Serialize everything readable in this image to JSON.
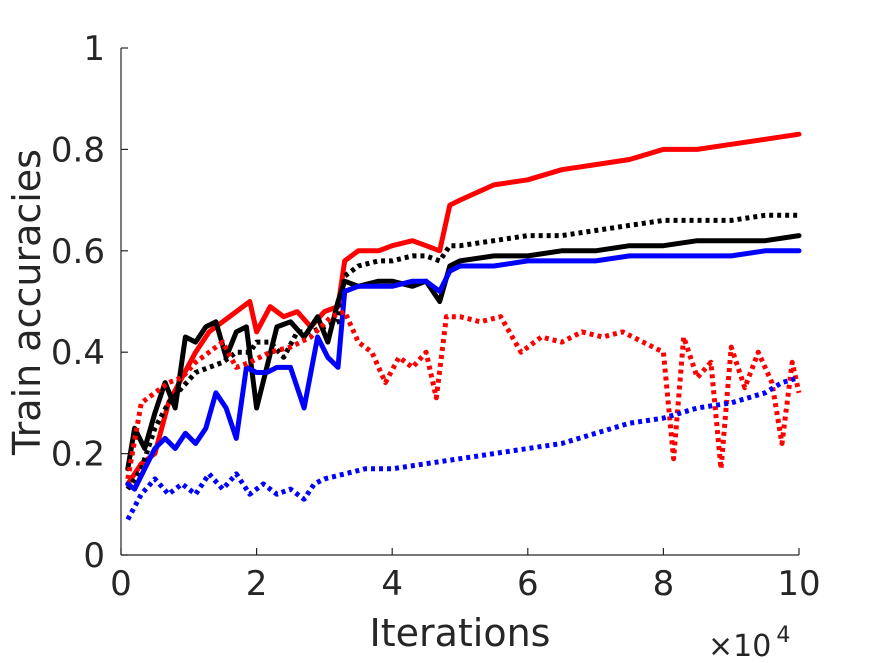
{
  "chart_data": {
    "type": "line",
    "xlabel": "Iterations",
    "ylabel": "Train accuracies",
    "x_multiplier_base": "×10",
    "x_multiplier_exp": "4",
    "xlim": [
      0,
      10
    ],
    "ylim": [
      0,
      1
    ],
    "xticks": [
      0,
      2,
      4,
      6,
      8,
      10
    ],
    "xtick_labels": [
      "0",
      "2",
      "4",
      "6",
      "8",
      "10"
    ],
    "yticks": [
      0,
      0.2,
      0.4,
      0.6,
      0.8,
      1
    ],
    "ytick_labels": [
      "0",
      "0.2",
      "0.4",
      "0.6",
      "0.8",
      "1"
    ],
    "grid": false,
    "series": [
      {
        "color": "#ff0000",
        "style": "solid",
        "x": [
          0.1,
          0.3,
          0.5,
          0.7,
          0.9,
          1.1,
          1.3,
          1.5,
          1.7,
          1.9,
          2.0,
          2.2,
          2.4,
          2.6,
          2.8,
          3.0,
          3.2,
          3.3,
          3.5,
          3.8,
          4.0,
          4.3,
          4.5,
          4.7,
          4.85,
          5.0,
          5.5,
          6.0,
          6.5,
          7.0,
          7.5,
          8.0,
          8.5,
          9.0,
          9.5,
          10.0
        ],
        "y": [
          0.14,
          0.18,
          0.2,
          0.3,
          0.35,
          0.4,
          0.44,
          0.46,
          0.48,
          0.5,
          0.44,
          0.49,
          0.47,
          0.48,
          0.45,
          0.48,
          0.49,
          0.58,
          0.6,
          0.6,
          0.61,
          0.62,
          0.61,
          0.6,
          0.69,
          0.7,
          0.73,
          0.74,
          0.76,
          0.77,
          0.78,
          0.8,
          0.8,
          0.81,
          0.82,
          0.83
        ]
      },
      {
        "color": "#000000",
        "style": "dotted",
        "x": [
          0.1,
          0.3,
          0.5,
          0.7,
          0.9,
          1.1,
          1.3,
          1.5,
          1.7,
          1.9,
          2.0,
          2.2,
          2.4,
          2.6,
          2.8,
          3.0,
          3.2,
          3.3,
          3.5,
          3.8,
          4.0,
          4.3,
          4.5,
          4.7,
          4.85,
          5.0,
          5.5,
          6.0,
          6.5,
          7.0,
          7.5,
          8.0,
          8.5,
          9.0,
          9.5,
          10.0
        ],
        "y": [
          0.13,
          0.17,
          0.25,
          0.3,
          0.33,
          0.36,
          0.37,
          0.38,
          0.4,
          0.4,
          0.42,
          0.42,
          0.39,
          0.44,
          0.44,
          0.45,
          0.46,
          0.55,
          0.57,
          0.58,
          0.58,
          0.59,
          0.59,
          0.58,
          0.61,
          0.61,
          0.62,
          0.63,
          0.63,
          0.64,
          0.65,
          0.66,
          0.66,
          0.66,
          0.67,
          0.67
        ]
      },
      {
        "color": "#000000",
        "style": "solid",
        "x": [
          0.1,
          0.2,
          0.35,
          0.5,
          0.65,
          0.8,
          0.95,
          1.1,
          1.25,
          1.4,
          1.55,
          1.7,
          1.85,
          2.0,
          2.15,
          2.3,
          2.5,
          2.7,
          2.9,
          3.05,
          3.2,
          3.3,
          3.5,
          3.8,
          4.0,
          4.3,
          4.5,
          4.7,
          4.85,
          5.0,
          5.5,
          6.0,
          6.5,
          7.0,
          7.5,
          8.0,
          8.5,
          9.0,
          9.5,
          10.0
        ],
        "y": [
          0.17,
          0.25,
          0.21,
          0.28,
          0.34,
          0.29,
          0.43,
          0.42,
          0.45,
          0.46,
          0.39,
          0.44,
          0.45,
          0.29,
          0.37,
          0.45,
          0.46,
          0.43,
          0.47,
          0.42,
          0.5,
          0.54,
          0.53,
          0.54,
          0.54,
          0.53,
          0.54,
          0.5,
          0.57,
          0.58,
          0.59,
          0.59,
          0.6,
          0.6,
          0.61,
          0.61,
          0.62,
          0.62,
          0.62,
          0.63
        ]
      },
      {
        "color": "#0000ff",
        "style": "solid",
        "x": [
          0.1,
          0.2,
          0.35,
          0.5,
          0.65,
          0.8,
          0.95,
          1.1,
          1.25,
          1.4,
          1.55,
          1.7,
          1.85,
          2.0,
          2.15,
          2.3,
          2.5,
          2.7,
          2.9,
          3.05,
          3.2,
          3.3,
          3.5,
          3.8,
          4.0,
          4.3,
          4.5,
          4.7,
          4.85,
          5.0,
          5.5,
          6.0,
          6.5,
          7.0,
          7.5,
          8.0,
          8.5,
          9.0,
          9.5,
          10.0
        ],
        "y": [
          0.14,
          0.13,
          0.17,
          0.21,
          0.23,
          0.21,
          0.24,
          0.22,
          0.25,
          0.32,
          0.29,
          0.23,
          0.37,
          0.36,
          0.36,
          0.37,
          0.37,
          0.29,
          0.43,
          0.39,
          0.37,
          0.52,
          0.53,
          0.53,
          0.53,
          0.54,
          0.54,
          0.52,
          0.56,
          0.57,
          0.57,
          0.58,
          0.58,
          0.58,
          0.59,
          0.59,
          0.59,
          0.59,
          0.6,
          0.6
        ]
      },
      {
        "color": "#ff0000",
        "style": "dotted",
        "x": [
          0.1,
          0.3,
          0.5,
          0.7,
          0.9,
          1.1,
          1.3,
          1.5,
          1.7,
          1.9,
          2.2,
          2.5,
          2.8,
          3.1,
          3.3,
          3.5,
          3.7,
          3.9,
          4.1,
          4.3,
          4.5,
          4.65,
          4.8,
          5.0,
          5.3,
          5.6,
          5.9,
          6.2,
          6.5,
          6.8,
          7.1,
          7.4,
          7.7,
          8.0,
          8.15,
          8.3,
          8.5,
          8.7,
          8.85,
          9.0,
          9.2,
          9.4,
          9.6,
          9.75,
          9.9,
          10.0
        ],
        "y": [
          0.15,
          0.3,
          0.32,
          0.34,
          0.35,
          0.38,
          0.4,
          0.42,
          0.37,
          0.38,
          0.4,
          0.41,
          0.43,
          0.47,
          0.48,
          0.42,
          0.4,
          0.34,
          0.39,
          0.37,
          0.4,
          0.31,
          0.47,
          0.47,
          0.46,
          0.47,
          0.4,
          0.43,
          0.42,
          0.44,
          0.43,
          0.44,
          0.42,
          0.4,
          0.19,
          0.43,
          0.35,
          0.38,
          0.17,
          0.41,
          0.33,
          0.4,
          0.34,
          0.22,
          0.38,
          0.32
        ]
      },
      {
        "color": "#0000ff",
        "style": "dotted",
        "x": [
          0.1,
          0.3,
          0.5,
          0.7,
          0.9,
          1.1,
          1.3,
          1.5,
          1.7,
          1.9,
          2.1,
          2.3,
          2.5,
          2.7,
          2.85,
          3.0,
          3.3,
          3.6,
          4.0,
          4.5,
          5.0,
          5.5,
          6.0,
          6.5,
          7.0,
          7.5,
          8.0,
          8.5,
          9.0,
          9.5,
          9.75,
          10.0
        ],
        "y": [
          0.07,
          0.12,
          0.15,
          0.12,
          0.14,
          0.12,
          0.16,
          0.13,
          0.16,
          0.12,
          0.14,
          0.12,
          0.13,
          0.11,
          0.14,
          0.15,
          0.16,
          0.17,
          0.17,
          0.18,
          0.19,
          0.2,
          0.21,
          0.22,
          0.24,
          0.26,
          0.27,
          0.29,
          0.3,
          0.32,
          0.34,
          0.35
        ]
      }
    ]
  }
}
